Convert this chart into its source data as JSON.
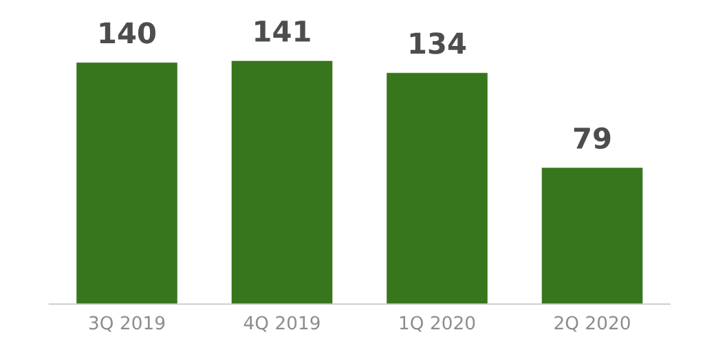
{
  "chart_data": {
    "type": "bar",
    "categories": [
      "3Q 2019",
      "4Q 2019",
      "1Q 2020",
      "2Q 2020"
    ],
    "values": [
      140,
      141,
      134,
      79
    ],
    "color": "#38761d",
    "data_labels": true,
    "grid": false,
    "legend": false,
    "tick_labels": "x"
  }
}
